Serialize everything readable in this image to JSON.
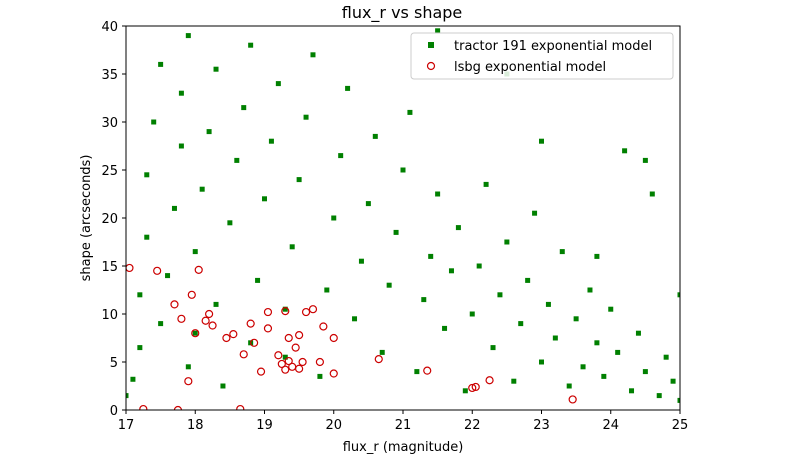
{
  "chart_data": {
    "type": "scatter",
    "title": "flux_r vs shape",
    "xlabel": "flux_r (magnitude)",
    "ylabel": "shape (arcseconds)",
    "xlim": [
      17,
      25
    ],
    "ylim": [
      0,
      40
    ],
    "xticks": [
      "17",
      "18",
      "19",
      "20",
      "21",
      "22",
      "23",
      "24",
      "25"
    ],
    "yticks": [
      "0",
      "5",
      "10",
      "15",
      "20",
      "25",
      "30",
      "35",
      "40"
    ],
    "grid": false,
    "legend_position": "top-right",
    "series": [
      {
        "name": "tractor 191 exponential model",
        "marker": "filled-square",
        "color": "#008000",
        "points": [
          [
            17.0,
            1.5
          ],
          [
            17.1,
            3.2
          ],
          [
            17.2,
            6.5
          ],
          [
            17.2,
            12.0
          ],
          [
            17.3,
            18.0
          ],
          [
            17.3,
            24.5
          ],
          [
            17.4,
            30.0
          ],
          [
            17.5,
            36.0
          ],
          [
            17.5,
            9.0
          ],
          [
            17.6,
            14.0
          ],
          [
            17.7,
            21.0
          ],
          [
            17.8,
            27.5
          ],
          [
            17.8,
            33.0
          ],
          [
            17.9,
            39.0
          ],
          [
            17.9,
            4.5
          ],
          [
            18.0,
            8.0
          ],
          [
            18.0,
            16.5
          ],
          [
            18.1,
            23.0
          ],
          [
            18.2,
            29.0
          ],
          [
            18.3,
            35.5
          ],
          [
            18.3,
            11.0
          ],
          [
            18.4,
            2.5
          ],
          [
            18.5,
            19.5
          ],
          [
            18.6,
            26.0
          ],
          [
            18.7,
            31.5
          ],
          [
            18.8,
            38.0
          ],
          [
            18.8,
            7.0
          ],
          [
            18.9,
            13.5
          ],
          [
            19.0,
            22.0
          ],
          [
            19.1,
            28.0
          ],
          [
            19.2,
            34.0
          ],
          [
            19.3,
            5.5
          ],
          [
            19.3,
            10.5
          ],
          [
            19.4,
            17.0
          ],
          [
            19.5,
            24.0
          ],
          [
            19.6,
            30.5
          ],
          [
            19.7,
            37.0
          ],
          [
            19.8,
            3.5
          ],
          [
            19.9,
            12.5
          ],
          [
            20.0,
            20.0
          ],
          [
            20.1,
            26.5
          ],
          [
            20.2,
            33.5
          ],
          [
            20.3,
            9.5
          ],
          [
            20.4,
            15.5
          ],
          [
            20.5,
            21.5
          ],
          [
            20.6,
            28.5
          ],
          [
            20.7,
            6.0
          ],
          [
            20.8,
            13.0
          ],
          [
            20.9,
            18.5
          ],
          [
            21.0,
            25.0
          ],
          [
            21.1,
            31.0
          ],
          [
            21.2,
            4.0
          ],
          [
            21.3,
            11.5
          ],
          [
            21.4,
            16.0
          ],
          [
            21.5,
            22.5
          ],
          [
            21.6,
            8.5
          ],
          [
            21.7,
            14.5
          ],
          [
            21.8,
            19.0
          ],
          [
            21.9,
            2.0
          ],
          [
            22.0,
            10.0
          ],
          [
            22.1,
            15.0
          ],
          [
            22.2,
            23.5
          ],
          [
            22.3,
            6.5
          ],
          [
            22.4,
            12.0
          ],
          [
            22.5,
            17.5
          ],
          [
            22.6,
            3.0
          ],
          [
            22.7,
            9.0
          ],
          [
            22.8,
            13.5
          ],
          [
            22.9,
            20.5
          ],
          [
            23.0,
            5.0
          ],
          [
            23.1,
            11.0
          ],
          [
            23.2,
            7.5
          ],
          [
            23.3,
            16.5
          ],
          [
            23.4,
            2.5
          ],
          [
            23.5,
            9.5
          ],
          [
            23.6,
            4.5
          ],
          [
            23.7,
            12.5
          ],
          [
            23.8,
            7.0
          ],
          [
            23.9,
            3.5
          ],
          [
            24.0,
            10.5
          ],
          [
            24.1,
            6.0
          ],
          [
            24.2,
            27.0
          ],
          [
            24.3,
            2.0
          ],
          [
            24.4,
            8.0
          ],
          [
            24.5,
            4.0
          ],
          [
            24.6,
            22.5
          ],
          [
            24.7,
            1.5
          ],
          [
            24.8,
            5.5
          ],
          [
            24.9,
            3.0
          ],
          [
            25.0,
            12.0
          ],
          [
            25.0,
            1.0
          ],
          [
            24.5,
            26.0
          ],
          [
            23.8,
            16.0
          ],
          [
            23.0,
            28.0
          ],
          [
            22.5,
            35.0
          ],
          [
            21.5,
            39.5
          ]
        ]
      },
      {
        "name": "lsbg exponential model",
        "marker": "open-circle",
        "color": "#cc0000",
        "points": [
          [
            17.05,
            14.8
          ],
          [
            17.25,
            0.1
          ],
          [
            17.45,
            14.5
          ],
          [
            17.7,
            11.0
          ],
          [
            17.75,
            0.0
          ],
          [
            17.8,
            9.5
          ],
          [
            17.9,
            3.0
          ],
          [
            17.95,
            12.0
          ],
          [
            18.0,
            8.0
          ],
          [
            18.05,
            14.6
          ],
          [
            18.15,
            9.3
          ],
          [
            18.2,
            10.0
          ],
          [
            18.25,
            8.8
          ],
          [
            18.45,
            7.5
          ],
          [
            18.55,
            7.9
          ],
          [
            18.65,
            0.1
          ],
          [
            18.7,
            5.8
          ],
          [
            18.8,
            9.0
          ],
          [
            18.85,
            7.0
          ],
          [
            18.95,
            4.0
          ],
          [
            19.05,
            8.5
          ],
          [
            19.05,
            10.2
          ],
          [
            19.2,
            5.7
          ],
          [
            19.25,
            4.8
          ],
          [
            19.3,
            10.3
          ],
          [
            19.3,
            4.2
          ],
          [
            19.35,
            5.1
          ],
          [
            19.35,
            7.5
          ],
          [
            19.4,
            4.5
          ],
          [
            19.45,
            6.5
          ],
          [
            19.5,
            4.3
          ],
          [
            19.5,
            7.8
          ],
          [
            19.55,
            5.0
          ],
          [
            19.6,
            10.2
          ],
          [
            19.7,
            10.5
          ],
          [
            19.8,
            5.0
          ],
          [
            19.85,
            8.7
          ],
          [
            20.0,
            3.8
          ],
          [
            20.0,
            7.5
          ],
          [
            20.65,
            5.3
          ],
          [
            21.35,
            4.1
          ],
          [
            22.0,
            2.3
          ],
          [
            22.05,
            2.4
          ],
          [
            22.25,
            3.1
          ],
          [
            23.45,
            1.1
          ]
        ]
      }
    ]
  }
}
